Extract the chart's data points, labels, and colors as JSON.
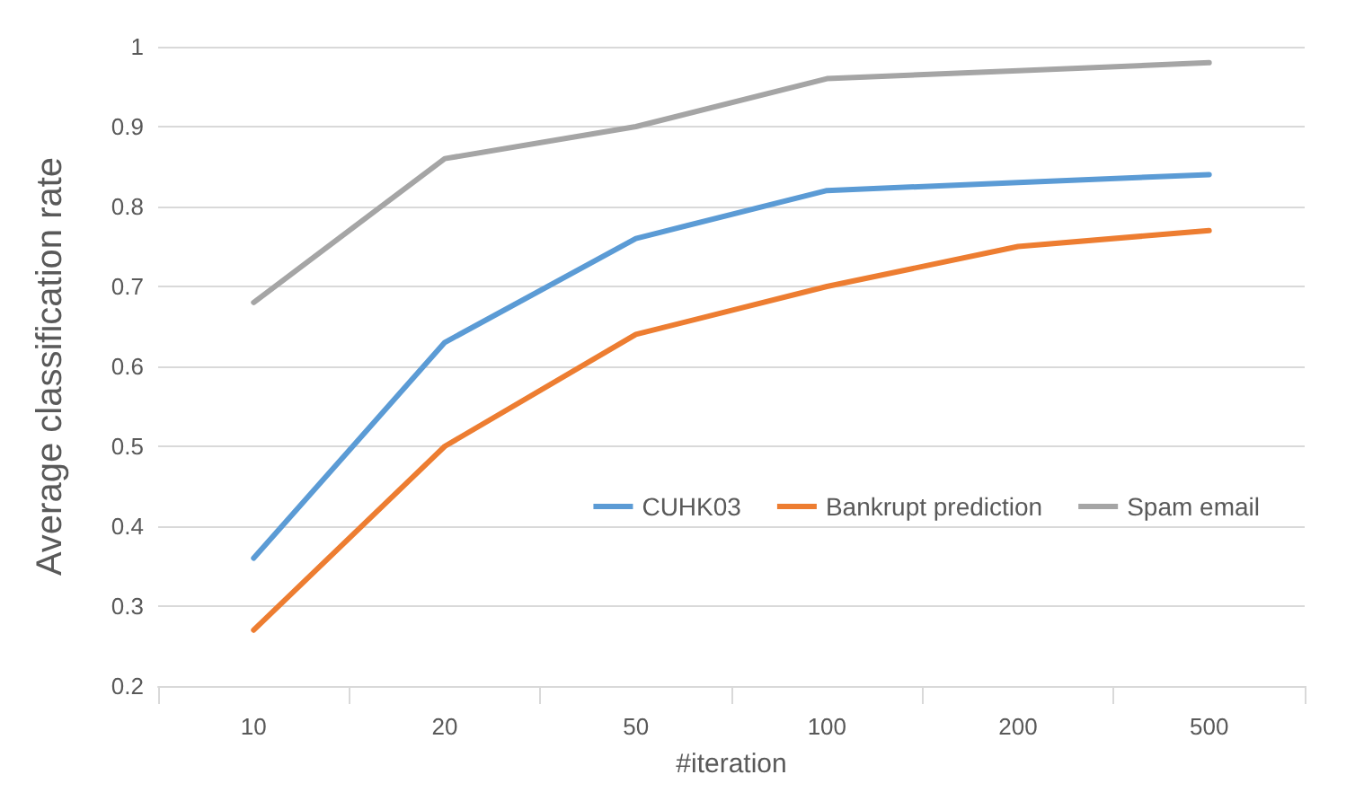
{
  "chart_data": {
    "type": "line",
    "xlabel": "#iteration",
    "ylabel": "Average classification rate",
    "categories": [
      "10",
      "20",
      "50",
      "100",
      "200",
      "500"
    ],
    "series": [
      {
        "name": "CUHK03",
        "color": "#5b9bd5",
        "values": [
          0.36,
          0.63,
          0.76,
          0.82,
          0.83,
          0.84
        ]
      },
      {
        "name": "Bankrupt prediction",
        "color": "#ed7d31",
        "values": [
          0.27,
          0.5,
          0.64,
          0.7,
          0.75,
          0.77
        ]
      },
      {
        "name": "Spam email",
        "color": "#a5a5a5",
        "values": [
          0.68,
          0.86,
          0.9,
          0.96,
          0.97,
          0.98
        ]
      }
    ],
    "ylim": [
      0.2,
      1
    ],
    "yticks": [
      0.2,
      0.3,
      0.4,
      0.5,
      0.6,
      0.7,
      0.8,
      0.9,
      1
    ],
    "grid": "y",
    "legend": "right",
    "marker": "none",
    "line_style": "solid"
  }
}
